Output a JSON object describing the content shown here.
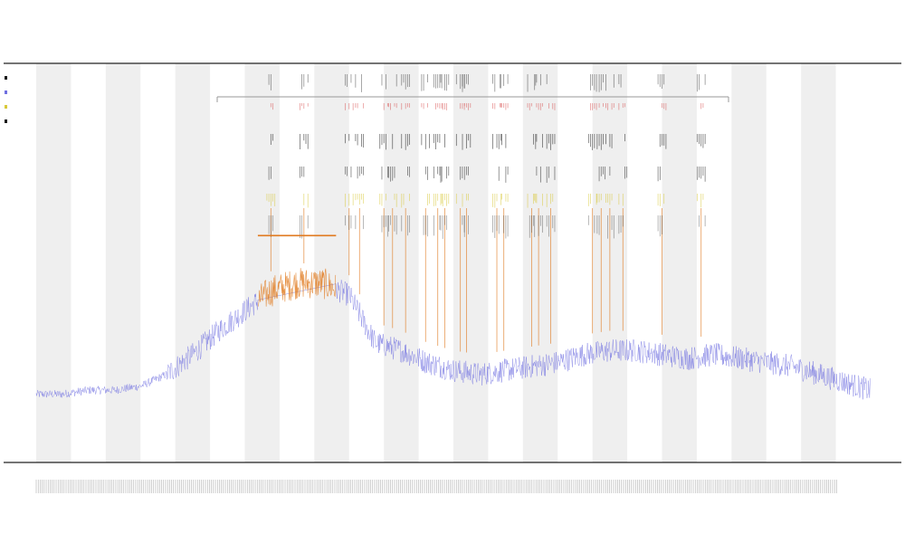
{
  "chart_data": {
    "type": "line",
    "title": "",
    "subtitle": "",
    "xlabel": "",
    "ylabel": "",
    "grid": false,
    "legend": "top-left",
    "background_bands": true,
    "colors": {
      "series_main": "#6f6fe0",
      "series_highlight": "#e07a1f",
      "band_fill": "#efefef",
      "axis": "#222222",
      "bracket": "#999999",
      "marker_black": "#1a1a1a",
      "marker_red": "#d43a3a",
      "marker_yellow": "#d8c93a",
      "marker_orange": "#e07a1f"
    },
    "x_range": [
      0,
      960
    ],
    "y_range": [
      0,
      1
    ],
    "series": [
      {
        "key": "main",
        "points_sparse": [
          [
            0,
            0.17
          ],
          [
            30,
            0.17
          ],
          [
            60,
            0.18
          ],
          [
            90,
            0.18
          ],
          [
            120,
            0.19
          ],
          [
            150,
            0.22
          ],
          [
            180,
            0.27
          ],
          [
            210,
            0.33
          ],
          [
            240,
            0.38
          ],
          [
            270,
            0.43
          ],
          [
            300,
            0.45
          ],
          [
            330,
            0.45
          ],
          [
            360,
            0.42
          ],
          [
            390,
            0.3
          ],
          [
            420,
            0.28
          ],
          [
            450,
            0.25
          ],
          [
            480,
            0.23
          ],
          [
            510,
            0.22
          ],
          [
            540,
            0.23
          ],
          [
            570,
            0.24
          ],
          [
            600,
            0.25
          ],
          [
            630,
            0.27
          ],
          [
            660,
            0.28
          ],
          [
            690,
            0.28
          ],
          [
            720,
            0.27
          ],
          [
            750,
            0.26
          ],
          [
            780,
            0.27
          ],
          [
            810,
            0.26
          ],
          [
            840,
            0.25
          ],
          [
            870,
            0.24
          ],
          [
            900,
            0.22
          ],
          [
            930,
            0.2
          ],
          [
            960,
            0.18
          ]
        ],
        "noise_amplitude": 0.06
      },
      {
        "key": "highlight",
        "range": [
          255,
          345
        ],
        "noise_amplitude": 0.08
      }
    ],
    "highlight_hline": {
      "x_from": 255,
      "x_to": 345,
      "y": 0.57
    },
    "event_lines_x": [
      270,
      308,
      360,
      372,
      400,
      410,
      425,
      448,
      462,
      470,
      488,
      495,
      530,
      538,
      570,
      578,
      592,
      640,
      650,
      660,
      675,
      720,
      765
    ],
    "events_marker_stride": 1
  }
}
